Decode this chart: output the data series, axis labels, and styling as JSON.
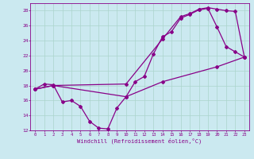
{
  "xlabel": "Windchill (Refroidissement éolien,°C)",
  "bg_color": "#cbe9f0",
  "grid_color": "#aad4cc",
  "line_color": "#880088",
  "xlim": [
    -0.5,
    23.5
  ],
  "ylim": [
    12,
    29
  ],
  "xticks": [
    0,
    1,
    2,
    3,
    4,
    5,
    6,
    7,
    8,
    9,
    10,
    11,
    12,
    13,
    14,
    15,
    16,
    17,
    18,
    19,
    20,
    21,
    22,
    23
  ],
  "yticks": [
    12,
    14,
    16,
    18,
    20,
    22,
    24,
    26,
    28
  ],
  "series1": [
    [
      0,
      17.5
    ],
    [
      1,
      18.2
    ],
    [
      2,
      18.1
    ],
    [
      3,
      15.8
    ],
    [
      4,
      16.0
    ],
    [
      5,
      15.2
    ],
    [
      6,
      13.2
    ],
    [
      7,
      12.3
    ],
    [
      8,
      12.2
    ],
    [
      9,
      15.0
    ],
    [
      10,
      16.5
    ],
    [
      11,
      18.5
    ],
    [
      12,
      19.2
    ],
    [
      13,
      22.2
    ],
    [
      14,
      24.5
    ],
    [
      15,
      25.2
    ],
    [
      16,
      27.0
    ],
    [
      17,
      27.5
    ],
    [
      18,
      28.1
    ],
    [
      19,
      28.3
    ],
    [
      20,
      25.8
    ],
    [
      21,
      23.2
    ],
    [
      22,
      22.5
    ],
    [
      23,
      21.8
    ]
  ],
  "series2": [
    [
      0,
      17.5
    ],
    [
      2,
      18.0
    ],
    [
      10,
      18.2
    ],
    [
      14,
      24.2
    ],
    [
      16,
      27.2
    ],
    [
      17,
      27.6
    ],
    [
      18,
      28.2
    ],
    [
      19,
      28.4
    ],
    [
      20,
      28.2
    ],
    [
      21,
      28.0
    ],
    [
      22,
      27.9
    ],
    [
      23,
      21.8
    ]
  ],
  "series3": [
    [
      0,
      17.5
    ],
    [
      2,
      18.0
    ],
    [
      10,
      16.5
    ],
    [
      14,
      18.5
    ],
    [
      20,
      20.5
    ],
    [
      23,
      21.8
    ]
  ]
}
